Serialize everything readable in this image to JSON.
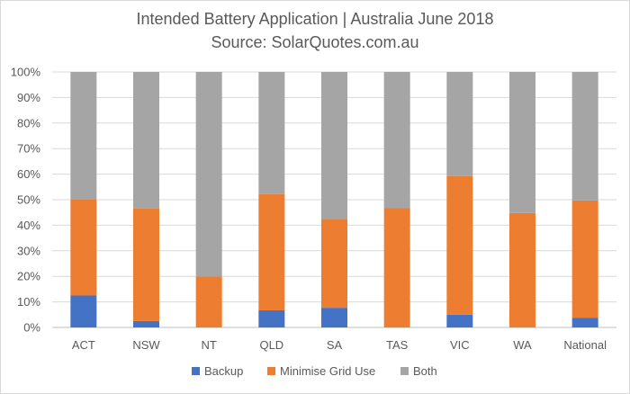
{
  "chart_data": {
    "type": "bar",
    "stacked": true,
    "title": "Intended Battery Application | Australia June 2018",
    "subtitle": "Source: SolarQuotes.com.au",
    "categories": [
      "ACT",
      "NSW",
      "NT",
      "QLD",
      "SA",
      "TAS",
      "VIC",
      "WA",
      "National"
    ],
    "series": [
      {
        "name": "Backup",
        "color": "#4472c4",
        "values": [
          12.5,
          2.5,
          0,
          6.7,
          7.7,
          0,
          5.0,
          0,
          3.7
        ]
      },
      {
        "name": "Minimise Grid Use",
        "color": "#ed7d31",
        "values": [
          37.5,
          44.0,
          20.0,
          45.5,
          34.7,
          46.8,
          54.2,
          44.8,
          46.0
        ]
      },
      {
        "name": "Both",
        "color": "#a5a5a5",
        "values": [
          50.0,
          53.5,
          80.0,
          47.8,
          57.6,
          53.2,
          40.8,
          55.2,
          50.3
        ]
      }
    ],
    "ylim": [
      0,
      100
    ],
    "yticks": [
      "0%",
      "10%",
      "20%",
      "30%",
      "40%",
      "50%",
      "60%",
      "70%",
      "80%",
      "90%",
      "100%"
    ],
    "grid": true,
    "legend_position": "bottom"
  }
}
